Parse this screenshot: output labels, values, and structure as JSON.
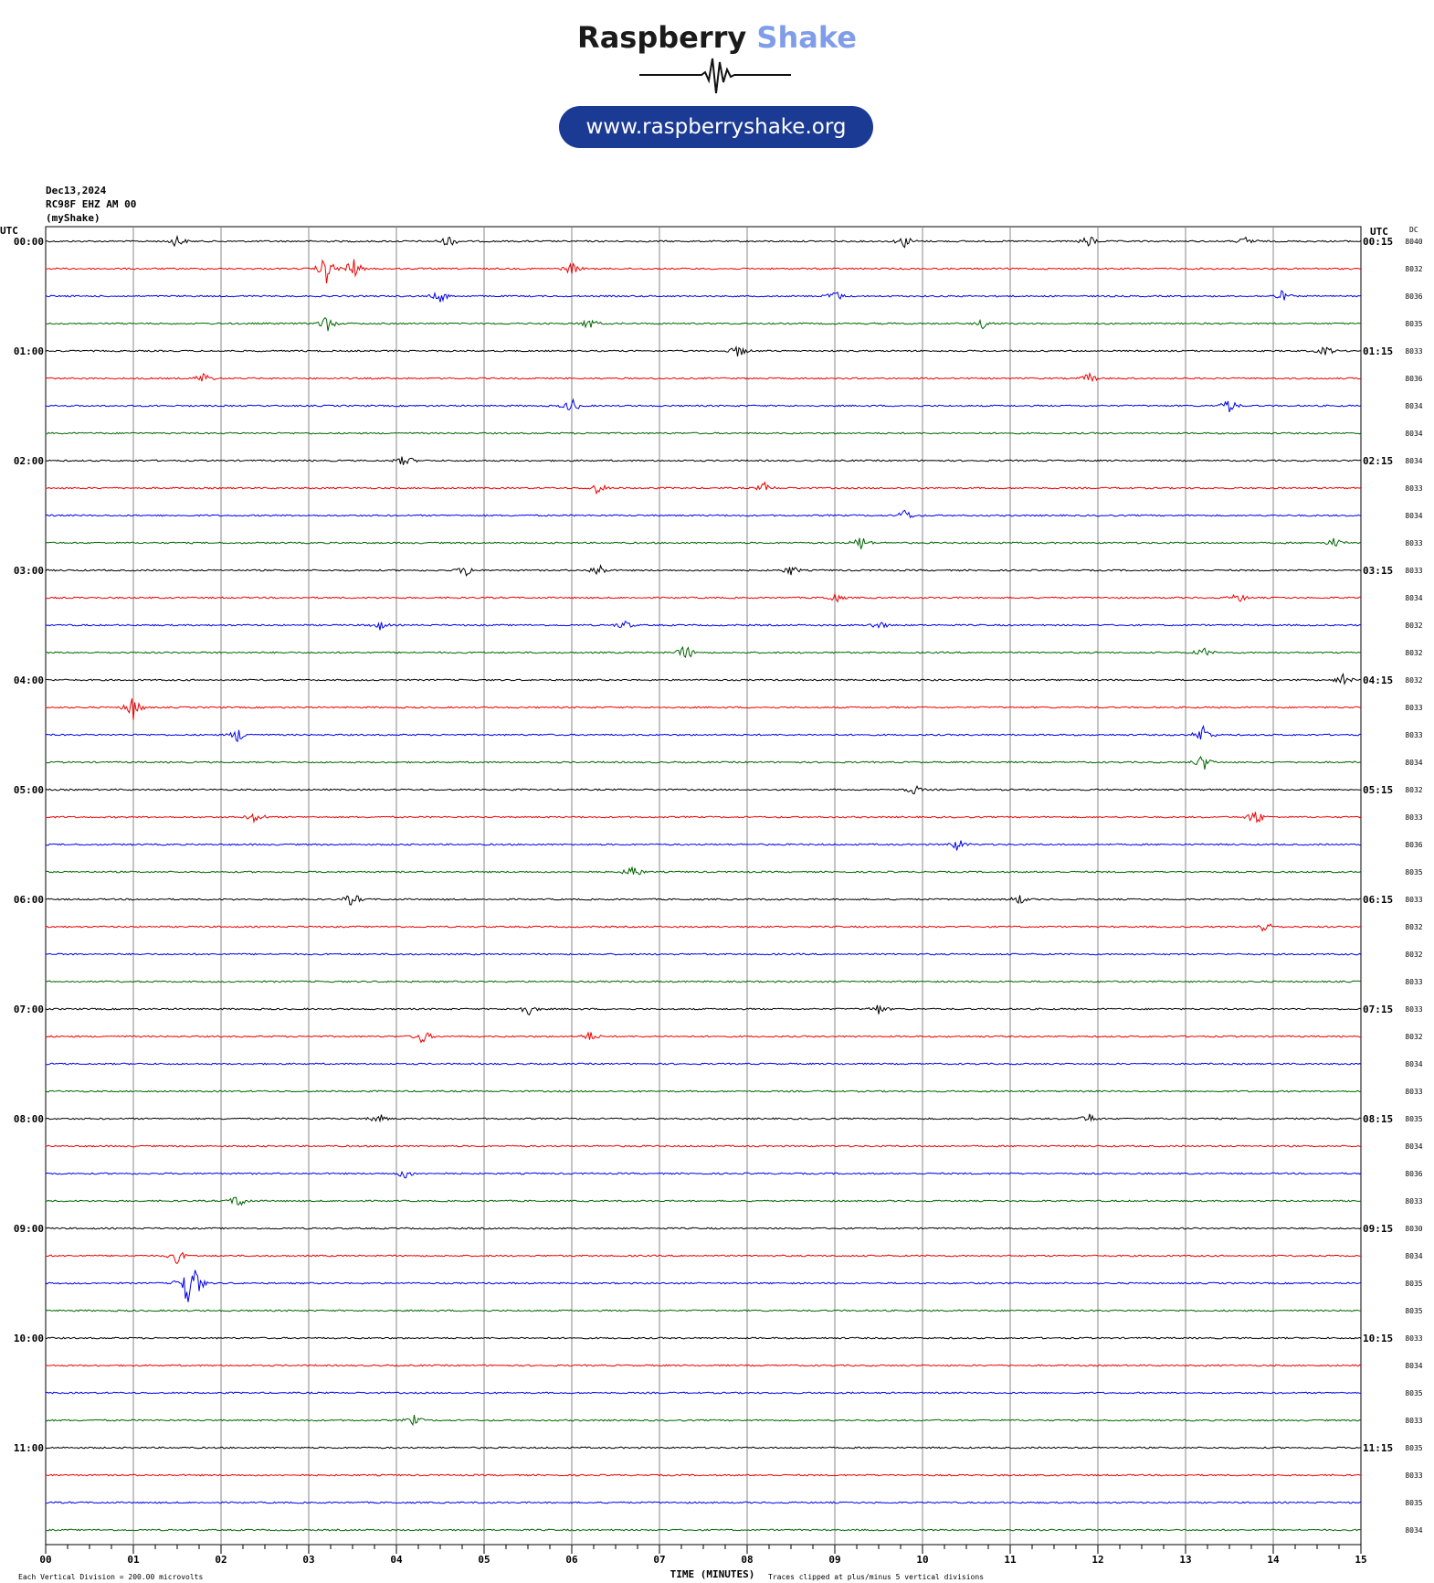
{
  "brand": {
    "name_part1": "Raspberry",
    "name_part2": "Shake",
    "url": "www.raspberryshake.org"
  },
  "header": {
    "date": "Dec13,2024",
    "station": "RC98F EHZ AM 00",
    "network": "(myShake)"
  },
  "left_axis_title": "UTC",
  "right_axis_title": "UTC",
  "dc_title": "DC",
  "footer": {
    "scale_note": "Each Vertical Division =  200.00 microvolts",
    "xlabel": "TIME (MINUTES)",
    "clip_note": "Traces clipped at plus/minus 5 vertical divisions"
  },
  "chart_data": {
    "type": "line",
    "title": "",
    "xlabel": "TIME (MINUTES)",
    "ylabel": "",
    "xlim": [
      0,
      15
    ],
    "x_ticks": [
      "00",
      "01",
      "02",
      "03",
      "04",
      "05",
      "06",
      "07",
      "08",
      "09",
      "10",
      "11",
      "12",
      "13",
      "14",
      "15"
    ],
    "grid": true,
    "rows": 48,
    "minutes_per_row": 15,
    "trace_colors": [
      "#000000",
      "#ee0000",
      "#0000ee",
      "#006600"
    ],
    "left_labels": [
      "00:00",
      "01:00",
      "02:00",
      "03:00",
      "04:00",
      "05:00",
      "06:00",
      "07:00",
      "08:00",
      "09:00",
      "10:00",
      "11:00"
    ],
    "right_labels": [
      "00:15",
      "01:15",
      "02:15",
      "03:15",
      "04:15",
      "05:15",
      "06:15",
      "07:15",
      "08:15",
      "09:15",
      "10:15",
      "11:15"
    ],
    "dc_offsets": [
      "8040",
      "8032",
      "8036",
      "8035",
      "8033",
      "8036",
      "8034",
      "8034",
      "8034",
      "8033",
      "8034",
      "8033",
      "8033",
      "8034",
      "8032",
      "8032",
      "8032",
      "8033",
      "8033",
      "8034",
      "8032",
      "8033",
      "8036",
      "8035",
      "8033",
      "8032",
      "8032",
      "8033",
      "8033",
      "8032",
      "8034",
      "8033",
      "8035",
      "8034",
      "8036",
      "8033",
      "8030",
      "8034",
      "8035",
      "8035",
      "8033",
      "8034",
      "8035",
      "8033",
      "8035",
      "8033",
      "8035",
      "8034"
    ],
    "events": [
      {
        "row": 0,
        "minute": 1.5,
        "amp": 0.5
      },
      {
        "row": 0,
        "minute": 4.6,
        "amp": 0.5
      },
      {
        "row": 0,
        "minute": 9.8,
        "amp": 0.5
      },
      {
        "row": 0,
        "minute": 11.9,
        "amp": 0.5
      },
      {
        "row": 0,
        "minute": 13.7,
        "amp": 0.4
      },
      {
        "row": 1,
        "minute": 3.2,
        "amp": 1.2
      },
      {
        "row": 1,
        "minute": 3.5,
        "amp": 1.0
      },
      {
        "row": 1,
        "minute": 6.0,
        "amp": 0.5
      },
      {
        "row": 2,
        "minute": 4.5,
        "amp": 0.5
      },
      {
        "row": 2,
        "minute": 9.0,
        "amp": 0.5
      },
      {
        "row": 2,
        "minute": 14.1,
        "amp": 0.4
      },
      {
        "row": 3,
        "minute": 3.2,
        "amp": 0.7
      },
      {
        "row": 3,
        "minute": 6.2,
        "amp": 0.5
      },
      {
        "row": 3,
        "minute": 10.7,
        "amp": 0.4
      },
      {
        "row": 4,
        "minute": 7.9,
        "amp": 0.5
      },
      {
        "row": 4,
        "minute": 14.6,
        "amp": 0.4
      },
      {
        "row": 5,
        "minute": 1.8,
        "amp": 0.5
      },
      {
        "row": 5,
        "minute": 11.9,
        "amp": 0.4
      },
      {
        "row": 6,
        "minute": 6.0,
        "amp": 0.6
      },
      {
        "row": 6,
        "minute": 13.5,
        "amp": 0.6
      },
      {
        "row": 8,
        "minute": 4.1,
        "amp": 0.5
      },
      {
        "row": 9,
        "minute": 6.3,
        "amp": 0.5
      },
      {
        "row": 9,
        "minute": 8.2,
        "amp": 0.4
      },
      {
        "row": 10,
        "minute": 9.8,
        "amp": 0.5
      },
      {
        "row": 11,
        "minute": 9.3,
        "amp": 0.6
      },
      {
        "row": 11,
        "minute": 14.7,
        "amp": 0.4
      },
      {
        "row": 12,
        "minute": 4.8,
        "amp": 0.5
      },
      {
        "row": 12,
        "minute": 6.3,
        "amp": 0.6
      },
      {
        "row": 12,
        "minute": 8.5,
        "amp": 0.4
      },
      {
        "row": 13,
        "minute": 9.0,
        "amp": 0.4
      },
      {
        "row": 13,
        "minute": 13.6,
        "amp": 0.4
      },
      {
        "row": 14,
        "minute": 3.8,
        "amp": 0.4
      },
      {
        "row": 14,
        "minute": 6.6,
        "amp": 0.4
      },
      {
        "row": 14,
        "minute": 9.5,
        "amp": 0.4
      },
      {
        "row": 15,
        "minute": 7.3,
        "amp": 0.7
      },
      {
        "row": 15,
        "minute": 13.2,
        "amp": 0.4
      },
      {
        "row": 16,
        "minute": 14.8,
        "amp": 0.5
      },
      {
        "row": 17,
        "minute": 1.0,
        "amp": 1.0
      },
      {
        "row": 18,
        "minute": 2.2,
        "amp": 0.6
      },
      {
        "row": 18,
        "minute": 13.2,
        "amp": 0.8
      },
      {
        "row": 19,
        "minute": 13.2,
        "amp": 0.7
      },
      {
        "row": 20,
        "minute": 9.9,
        "amp": 0.4
      },
      {
        "row": 21,
        "minute": 2.4,
        "amp": 0.5
      },
      {
        "row": 21,
        "minute": 13.8,
        "amp": 0.7
      },
      {
        "row": 22,
        "minute": 10.4,
        "amp": 0.5
      },
      {
        "row": 23,
        "minute": 6.7,
        "amp": 0.6
      },
      {
        "row": 24,
        "minute": 3.5,
        "amp": 0.6
      },
      {
        "row": 24,
        "minute": 11.1,
        "amp": 0.4
      },
      {
        "row": 25,
        "minute": 13.9,
        "amp": 0.5
      },
      {
        "row": 28,
        "minute": 5.5,
        "amp": 0.5
      },
      {
        "row": 28,
        "minute": 9.5,
        "amp": 0.4
      },
      {
        "row": 29,
        "minute": 4.3,
        "amp": 0.6
      },
      {
        "row": 29,
        "minute": 6.2,
        "amp": 0.4
      },
      {
        "row": 32,
        "minute": 3.8,
        "amp": 0.4
      },
      {
        "row": 32,
        "minute": 11.9,
        "amp": 0.4
      },
      {
        "row": 34,
        "minute": 4.1,
        "amp": 0.4
      },
      {
        "row": 35,
        "minute": 2.2,
        "amp": 0.6
      },
      {
        "row": 37,
        "minute": 1.5,
        "amp": 0.6
      },
      {
        "row": 38,
        "minute": 1.6,
        "amp": 1.6
      },
      {
        "row": 38,
        "minute": 1.7,
        "amp": 1.3
      },
      {
        "row": 43,
        "minute": 4.2,
        "amp": 0.4
      }
    ]
  }
}
